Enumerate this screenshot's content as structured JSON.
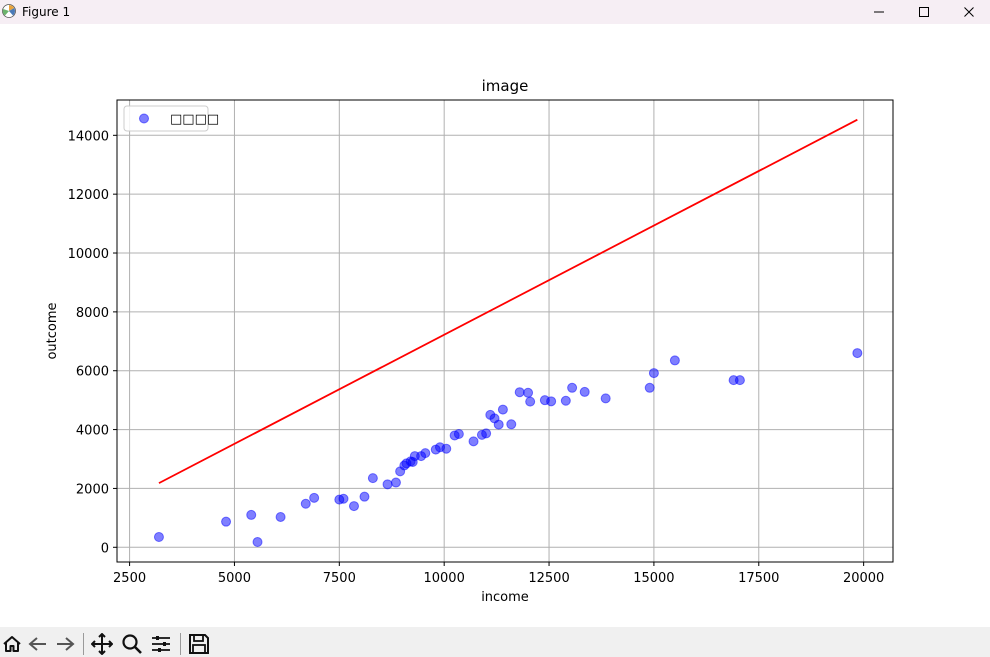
{
  "window": {
    "title": "Figure 1"
  },
  "toolbar": {
    "tools": [
      "home-icon",
      "back-arrow-icon",
      "forward-arrow-icon",
      "pan-icon",
      "zoom-icon",
      "subplots-icon",
      "save-icon"
    ]
  },
  "colors": {
    "points": "#0000ff",
    "line": "#ff0000",
    "grid": "#b0b0b0",
    "titlebar": "#f6eef4"
  },
  "chart_data": {
    "type": "scatter",
    "title": "image",
    "xlabel": "income",
    "ylabel": "outcome",
    "xlim": [
      2200,
      20700
    ],
    "ylim": [
      -500,
      15200
    ],
    "xticks": [
      2500,
      5000,
      7500,
      10000,
      12500,
      15000,
      17500,
      20000
    ],
    "yticks": [
      0,
      2000,
      4000,
      6000,
      8000,
      10000,
      12000,
      14000
    ],
    "grid": true,
    "legend": {
      "position": "top-left",
      "label": "□□□□"
    },
    "series": [
      {
        "kind": "scatter",
        "name": "□□□□",
        "color": "#0000ff",
        "alpha": 0.5,
        "points": [
          [
            3200,
            350
          ],
          [
            4800,
            870
          ],
          [
            5400,
            1100
          ],
          [
            5550,
            180
          ],
          [
            6100,
            1030
          ],
          [
            6700,
            1480
          ],
          [
            6900,
            1680
          ],
          [
            7500,
            1620
          ],
          [
            7600,
            1650
          ],
          [
            7850,
            1400
          ],
          [
            8100,
            1720
          ],
          [
            8300,
            2350
          ],
          [
            8650,
            2140
          ],
          [
            8850,
            2200
          ],
          [
            8950,
            2580
          ],
          [
            9050,
            2780
          ],
          [
            9100,
            2850
          ],
          [
            9200,
            2920
          ],
          [
            9250,
            2900
          ],
          [
            9300,
            3100
          ],
          [
            9450,
            3100
          ],
          [
            9550,
            3200
          ],
          [
            9800,
            3320
          ],
          [
            9900,
            3400
          ],
          [
            10050,
            3350
          ],
          [
            10250,
            3800
          ],
          [
            10350,
            3850
          ],
          [
            10700,
            3600
          ],
          [
            10900,
            3820
          ],
          [
            11000,
            3870
          ],
          [
            11100,
            4500
          ],
          [
            11200,
            4380
          ],
          [
            11300,
            4170
          ],
          [
            11400,
            4680
          ],
          [
            11600,
            4180
          ],
          [
            11800,
            5270
          ],
          [
            12000,
            5250
          ],
          [
            12050,
            4950
          ],
          [
            12400,
            5000
          ],
          [
            12550,
            4960
          ],
          [
            12900,
            4980
          ],
          [
            13050,
            5420
          ],
          [
            13350,
            5280
          ],
          [
            13850,
            5060
          ],
          [
            14900,
            5420
          ],
          [
            15000,
            5920
          ],
          [
            15500,
            6350
          ],
          [
            16900,
            5680
          ],
          [
            17050,
            5680
          ],
          [
            19850,
            6600
          ]
        ]
      },
      {
        "kind": "line",
        "color": "#ff0000",
        "points": [
          [
            3200,
            2180
          ],
          [
            19850,
            14530
          ]
        ]
      }
    ]
  }
}
